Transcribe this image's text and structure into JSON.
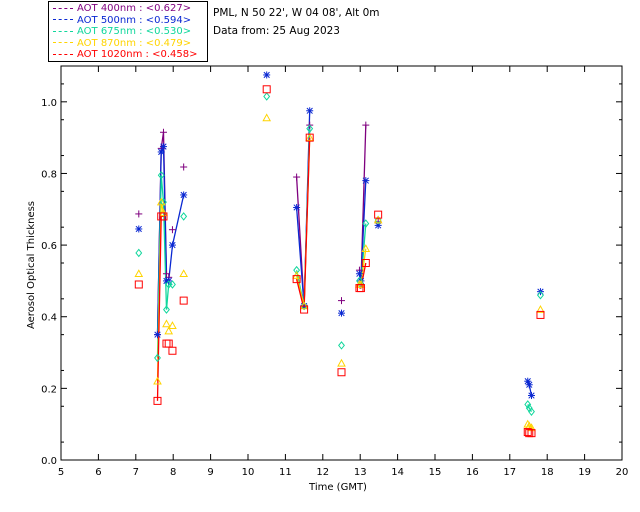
{
  "header": {
    "station": "PML, N 50 22', W 04 08', Alt 0m",
    "data_from": "Data from: 25 Aug 2023"
  },
  "legend": [
    {
      "label": "AOT  400nm : <0.627>",
      "color": "#7f007f"
    },
    {
      "label": "AOT  500nm : <0.594>",
      "color": "#0a28d2"
    },
    {
      "label": "AOT  675nm : <0.530>",
      "color": "#10d79c"
    },
    {
      "label": "AOT  870nm : <0.479>",
      "color": "#ffd400"
    },
    {
      "label": "AOT 1020nm : <0.458>",
      "color": "#ff0000"
    }
  ],
  "chart_data": {
    "type": "scatter",
    "title": "",
    "xlabel": "Time (GMT)",
    "ylabel": "Aerosol Optical Thickness",
    "xlim": [
      5,
      20
    ],
    "ylim": [
      0,
      1.1
    ],
    "xticks": [
      5,
      6,
      7,
      8,
      9,
      10,
      11,
      12,
      13,
      14,
      15,
      16,
      17,
      18,
      19,
      20
    ],
    "yticks": [
      0.0,
      0.2,
      0.4,
      0.6,
      0.8,
      1.0
    ],
    "ytick_labels": [
      "0.0",
      "0.2",
      "0.4",
      "0.6",
      "0.8",
      "1.0"
    ],
    "grid": false,
    "legend_position": "top-left, outside plot",
    "series": [
      {
        "name": "AOT 400nm",
        "color": "#7f007f",
        "marker": "plus",
        "x": [
          7.08,
          7.58,
          7.68,
          7.74,
          7.82,
          7.88,
          7.98,
          8.28,
          11.3,
          11.5,
          11.65,
          12.5,
          12.98,
          13.02,
          13.15,
          13.48
        ],
        "y": [
          0.687,
          0.35,
          0.87,
          0.915,
          0.52,
          0.51,
          0.643,
          0.818,
          0.79,
          0.432,
          0.935,
          0.445,
          0.53,
          0.49,
          0.935,
          0.665
        ],
        "line_segments": [
          [
            1,
            2,
            3,
            4
          ],
          [
            8,
            9,
            10
          ],
          [
            12,
            13,
            14
          ]
        ]
      },
      {
        "name": "AOT 500nm",
        "color": "#0a28d2",
        "marker": "asterisk",
        "x": [
          7.08,
          7.58,
          7.68,
          7.74,
          7.82,
          7.88,
          7.98,
          8.28,
          10.5,
          11.3,
          11.5,
          11.65,
          12.5,
          12.98,
          13.02,
          13.15,
          13.48,
          17.48,
          17.52,
          17.58,
          17.82
        ],
        "y": [
          0.645,
          0.35,
          0.86,
          0.875,
          0.5,
          0.5,
          0.6,
          0.74,
          1.075,
          0.705,
          0.43,
          0.975,
          0.41,
          0.52,
          0.5,
          0.78,
          0.655,
          0.22,
          0.21,
          0.18,
          0.47
        ],
        "line_segments": [
          [
            1,
            2,
            3,
            4
          ],
          [
            4,
            5,
            6,
            7
          ],
          [
            9,
            10,
            11
          ],
          [
            13,
            14,
            15
          ],
          [
            17,
            18,
            19
          ]
        ]
      },
      {
        "name": "AOT 675nm",
        "color": "#10d79c",
        "marker": "diamond",
        "x": [
          7.08,
          7.58,
          7.68,
          7.74,
          7.82,
          7.88,
          7.98,
          8.28,
          10.5,
          11.3,
          11.5,
          11.65,
          12.5,
          12.98,
          13.02,
          13.15,
          13.48,
          17.48,
          17.52,
          17.58,
          17.82
        ],
        "y": [
          0.578,
          0.285,
          0.795,
          0.72,
          0.42,
          0.49,
          0.49,
          0.68,
          1.015,
          0.53,
          0.43,
          0.925,
          0.32,
          0.5,
          0.49,
          0.66,
          0.67,
          0.155,
          0.145,
          0.135,
          0.46
        ],
        "line_segments": [
          [
            1,
            2,
            3,
            4
          ],
          [
            4,
            5,
            6
          ],
          [
            9,
            10,
            11
          ],
          [
            13,
            14,
            15
          ],
          [
            17,
            18,
            19
          ]
        ]
      },
      {
        "name": "AOT 870nm",
        "color": "#ffd400",
        "marker": "triangle",
        "x": [
          7.08,
          7.58,
          7.68,
          7.74,
          7.82,
          7.88,
          7.98,
          8.28,
          10.5,
          11.3,
          11.5,
          11.65,
          12.5,
          12.98,
          13.02,
          13.15,
          13.48,
          17.48,
          17.52,
          17.58,
          17.82
        ],
        "y": [
          0.52,
          0.22,
          0.72,
          0.69,
          0.38,
          0.36,
          0.375,
          0.52,
          0.955,
          0.515,
          0.43,
          0.9,
          0.27,
          0.49,
          0.49,
          0.59,
          0.67,
          0.1,
          0.095,
          0.09,
          0.42
        ],
        "line_segments": [
          [
            1,
            2,
            3
          ],
          [
            9,
            10,
            11
          ],
          [
            13,
            14,
            15
          ],
          [
            17,
            18,
            19
          ]
        ]
      },
      {
        "name": "AOT 1020nm",
        "color": "#ff0000",
        "marker": "square",
        "x": [
          7.08,
          7.58,
          7.68,
          7.74,
          7.82,
          7.88,
          7.98,
          8.28,
          10.5,
          11.3,
          11.5,
          11.65,
          12.5,
          12.98,
          13.02,
          13.15,
          13.48,
          17.48,
          17.52,
          17.58,
          17.82
        ],
        "y": [
          0.49,
          0.165,
          0.68,
          0.68,
          0.325,
          0.325,
          0.305,
          0.445,
          1.035,
          0.505,
          0.42,
          0.9,
          0.245,
          0.48,
          0.48,
          0.55,
          0.685,
          0.078,
          0.075,
          0.075,
          0.405
        ],
        "line_segments": [
          [
            1,
            2,
            3
          ],
          [
            9,
            10,
            11
          ],
          [
            13,
            14,
            15
          ]
        ]
      }
    ]
  }
}
